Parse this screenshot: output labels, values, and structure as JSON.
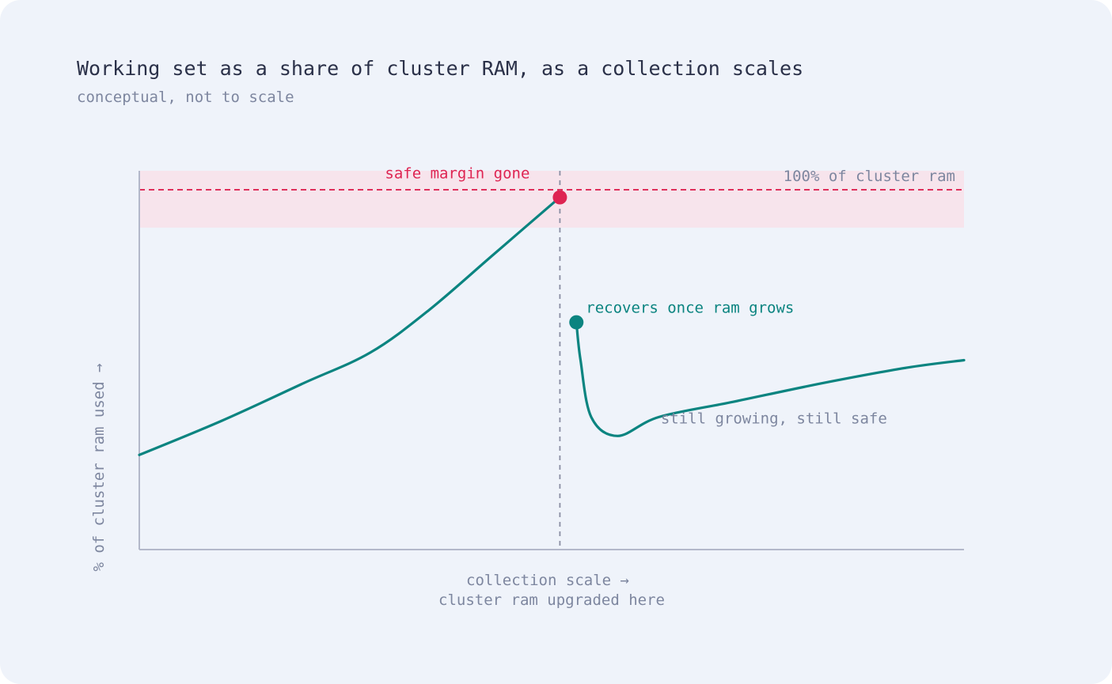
{
  "title": "Working set as a share of cluster RAM, as a collection scales",
  "subtitle": "conceptual, not to scale",
  "colors": {
    "background": "#eff3fa",
    "series": "#0b8480",
    "danger": "#de2452",
    "danger_band": "#f7e4ec",
    "axis": "#b3b8ca",
    "muted_text": "#7d869f",
    "marker_line": "#8a8ea3"
  },
  "chart_data": {
    "type": "line",
    "xlabel": "collection scale →",
    "ylabel": "% of cluster ram used →",
    "xlim": [
      0,
      100
    ],
    "ylim": [
      0,
      100
    ],
    "grid": false,
    "threshold": {
      "value": 95,
      "label": "100% of cluster ram"
    },
    "danger_band": [
      85,
      100
    ],
    "event": {
      "x": 51,
      "label": "cluster ram upgraded here"
    },
    "series": [
      {
        "x": [
          0,
          10,
          20,
          28,
          35,
          43,
          51
        ],
        "y": [
          25,
          34,
          44,
          52,
          63,
          78,
          93
        ]
      },
      {
        "x": [
          53,
          53.5,
          54.8,
          58,
          63,
          72,
          83,
          93,
          100
        ],
        "y": [
          60,
          50,
          35,
          30,
          35,
          39,
          44,
          48,
          50
        ]
      }
    ],
    "annotations": [
      {
        "key": "margin_gone",
        "text": "safe margin gone",
        "x": 51,
        "y": 93
      },
      {
        "key": "recovers",
        "text": "recovers once ram grows",
        "x": 53,
        "y": 60
      },
      {
        "key": "growing",
        "text": "still growing, still safe",
        "x": 90,
        "y": 36
      }
    ]
  }
}
